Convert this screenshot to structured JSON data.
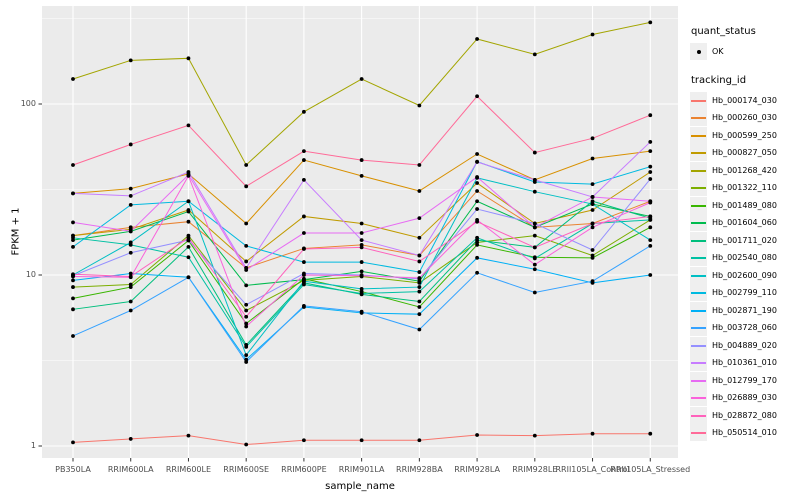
{
  "figure": {
    "panel_bg": "#ebebeb",
    "grid_color": "#ffffff",
    "tick_color": "#333333",
    "axis_text_color": "#4d4d4d",
    "point_color": "#000000"
  },
  "chart_data": {
    "type": "line",
    "title": "",
    "xlabel": "sample_name",
    "ylabel": "FPKM + 1",
    "y_scale": "log10",
    "ylim": [
      1,
      380
    ],
    "y_ticks": [
      "1",
      "10",
      "100"
    ],
    "y_tick_values": [
      1,
      10,
      100
    ],
    "y_minor_values": [
      3.162,
      31.62,
      316.2
    ],
    "grid": true,
    "legend_position": "right",
    "categories": [
      "PB350LA",
      "RRIM600LA",
      "RRIM600LE",
      "RRIM600SE",
      "RRIM600PE",
      "RRIM901LA",
      "RRIM928BA",
      "RRIM928LA",
      "RRIM928LE",
      "RRII105LA_Control",
      "RRII105LA_Stressed"
    ],
    "series": [
      {
        "name": "Hb_000174_030",
        "color": "#F8766D",
        "values": [
          1.05,
          1.1,
          1.15,
          1.02,
          1.08,
          1.08,
          1.08,
          1.16,
          1.15,
          1.18,
          1.18
        ]
      },
      {
        "name": "Hb_000260_030",
        "color": "#EA8331",
        "values": [
          17,
          19,
          20.5,
          11,
          14.3,
          15,
          13,
          31,
          19,
          20,
          27
        ]
      },
      {
        "name": "Hb_000599_250",
        "color": "#D89000",
        "values": [
          30,
          32,
          39,
          20,
          47,
          38,
          31,
          51,
          36,
          48,
          53
        ]
      },
      {
        "name": "Hb_000827_050",
        "color": "#C09B00",
        "values": [
          17,
          18.5,
          24,
          12,
          22,
          20,
          16.5,
          34.5,
          20,
          24,
          40
        ]
      },
      {
        "name": "Hb_001268_420",
        "color": "#A3A500",
        "values": [
          140,
          180,
          185,
          44,
          90,
          140,
          98,
          240,
          195,
          255,
          300
        ]
      },
      {
        "name": "Hb_001322_110",
        "color": "#7CAE00",
        "values": [
          8.5,
          8.8,
          17,
          6.2,
          9.3,
          9.8,
          9.0,
          15.5,
          17,
          13,
          21
        ]
      },
      {
        "name": "Hb_001489_080",
        "color": "#39B600",
        "values": [
          7.3,
          8.5,
          15.9,
          5.2,
          9.5,
          8.0,
          6.5,
          15,
          12.7,
          12.6,
          19
        ]
      },
      {
        "name": "Hb_001604_060",
        "color": "#00BB4E",
        "values": [
          16,
          18,
          23.5,
          8.7,
          9.4,
          10.5,
          9.2,
          27,
          19,
          26,
          22
        ]
      },
      {
        "name": "Hb_001711_020",
        "color": "#00BF7D",
        "values": [
          6.3,
          7.0,
          14.6,
          3.9,
          9.0,
          7.7,
          7.0,
          16,
          14.5,
          27,
          21.5
        ]
      },
      {
        "name": "Hb_002540_080",
        "color": "#00C1A3",
        "values": [
          16.5,
          15,
          12.7,
          3.8,
          8.8,
          7.8,
          8.0,
          16.5,
          12.5,
          20,
          21
        ]
      },
      {
        "name": "Hb_002600_090",
        "color": "#00BFC4",
        "values": [
          10,
          15.5,
          27,
          3.4,
          9.2,
          8.3,
          8.5,
          37,
          30.7,
          26,
          16
        ]
      },
      {
        "name": "Hb_002799_110",
        "color": "#00BAE0",
        "values": [
          14.6,
          25.7,
          27,
          14.8,
          11.9,
          11.9,
          10.4,
          46,
          35,
          34,
          43
        ]
      },
      {
        "name": "Hb_002871_190",
        "color": "#00B0F6",
        "values": [
          9.3,
          10.2,
          9.7,
          3.2,
          6.5,
          6.0,
          5.9,
          12.6,
          10.8,
          9.0,
          10.0
        ]
      },
      {
        "name": "Hb_003728_060",
        "color": "#35A2FF",
        "values": [
          4.4,
          6.2,
          9.7,
          3.1,
          6.6,
          6.1,
          4.8,
          10.3,
          7.9,
          9.2,
          14.8
        ]
      },
      {
        "name": "Hb_004889_020",
        "color": "#9590FF",
        "values": [
          9.9,
          13.5,
          16,
          6.7,
          10.2,
          10.0,
          9.5,
          24.3,
          20,
          14,
          36.4
        ]
      },
      {
        "name": "Hb_010361_010",
        "color": "#C77CFF",
        "values": [
          30,
          29,
          40,
          11,
          36,
          16,
          13,
          45.8,
          36,
          28.6,
          60
        ]
      },
      {
        "name": "Hb_012799_170",
        "color": "#E76BF3",
        "values": [
          20.3,
          18,
          38.5,
          10.7,
          17.6,
          17.6,
          21.5,
          37.4,
          19,
          28.6,
          27
        ]
      },
      {
        "name": "Hb_026889_030",
        "color": "#FA62DB",
        "values": [
          9.8,
          9.7,
          38,
          5.0,
          10.0,
          9.9,
          9.6,
          21,
          11.5,
          19,
          26.5
        ]
      },
      {
        "name": "Hb_028872_080",
        "color": "#FF62BC",
        "values": [
          10.1,
          9.8,
          16.5,
          5.7,
          14.2,
          14.5,
          12,
          20.5,
          14.5,
          20,
          22
        ]
      },
      {
        "name": "Hb_050514_010",
        "color": "#FF6A98",
        "values": [
          44,
          58,
          75,
          33,
          53,
          47,
          44,
          111,
          52,
          63,
          86
        ]
      }
    ]
  },
  "legend": {
    "quant_title": "quant_status",
    "quant_ok_label": "OK",
    "tracking_title": "tracking_id"
  }
}
